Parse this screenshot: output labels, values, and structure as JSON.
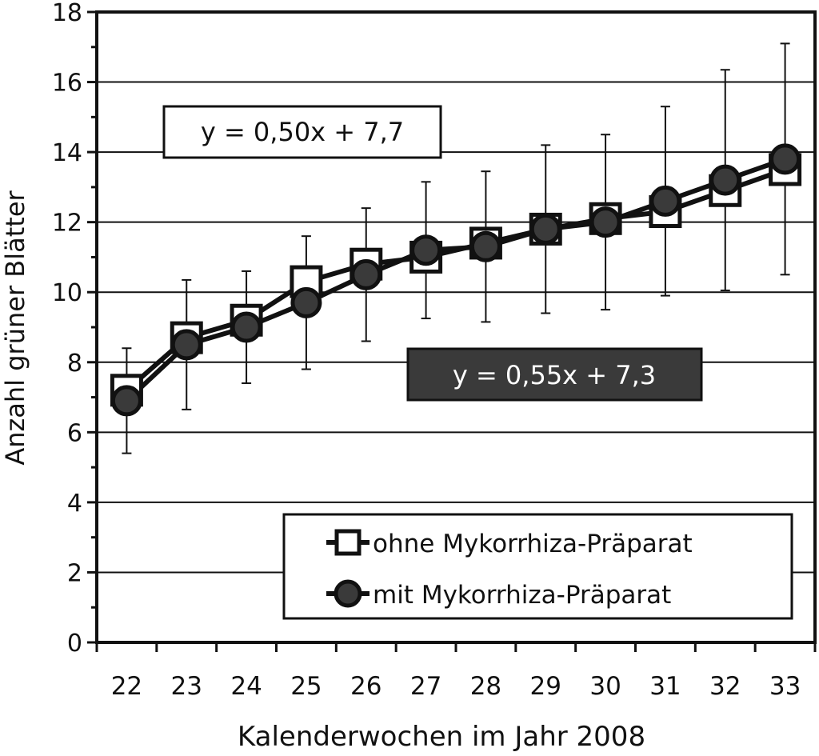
{
  "chart_data": {
    "type": "line",
    "xlabel": "Kalenderwochen im Jahr 2008",
    "ylabel": "Anzahl grüner Blätter",
    "ylim": [
      0,
      18
    ],
    "yticks": [
      "0",
      "2",
      "4",
      "6",
      "8",
      "10",
      "12",
      "14",
      "16",
      "18"
    ],
    "categories": [
      "22",
      "23",
      "24",
      "25",
      "26",
      "27",
      "28",
      "29",
      "30",
      "31",
      "32",
      "33"
    ],
    "grid": true,
    "legend_position": "bottom-right",
    "series": [
      {
        "name": "ohne Mykorrhiza-Präparat",
        "marker": "square",
        "fill": "#ffffff",
        "values": [
          7.2,
          8.7,
          9.2,
          10.3,
          10.8,
          11.0,
          11.4,
          11.8,
          12.1,
          12.3,
          12.9,
          13.5
        ]
      },
      {
        "name": "mit Mykorrhiza-Präparat",
        "marker": "circle",
        "fill": "#3a3a3a",
        "values": [
          6.9,
          8.5,
          9.0,
          9.7,
          10.5,
          11.2,
          11.3,
          11.8,
          12.0,
          12.6,
          13.2,
          13.8
        ],
        "error": [
          1.5,
          1.85,
          1.6,
          1.9,
          1.9,
          1.95,
          2.15,
          2.4,
          2.5,
          2.7,
          3.15,
          3.3
        ]
      }
    ],
    "annotations": [
      {
        "text": "y = 0,50x + 7,7",
        "style": "white-box"
      },
      {
        "text": "y = 0,55x + 7,3",
        "style": "dark-box"
      }
    ]
  }
}
